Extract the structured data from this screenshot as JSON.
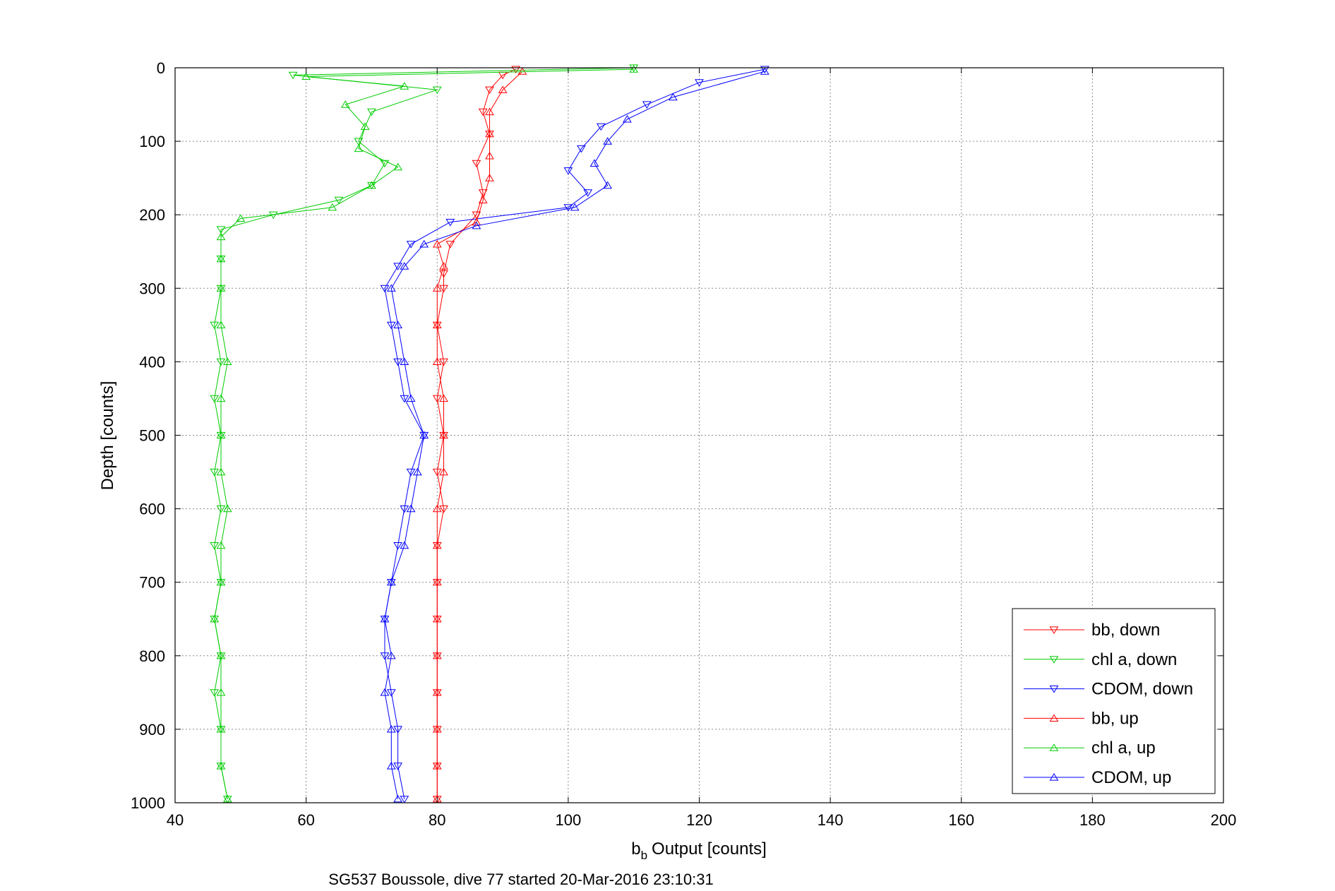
{
  "chart_data": {
    "type": "line",
    "xlabel": "Output [counts]",
    "xlabel_symbol": "b",
    "xlabel_subscript": "b",
    "ylabel": "Depth [counts]",
    "caption": "SG537 Boussole, dive 77 started 20-Mar-2016 23:10:31",
    "xlim": [
      40,
      200
    ],
    "ylim": [
      0,
      1000
    ],
    "y_reversed": true,
    "xticks": [
      "40",
      "60",
      "80",
      "100",
      "120",
      "140",
      "160",
      "180",
      "200"
    ],
    "yticks": [
      "0",
      "100",
      "200",
      "300",
      "400",
      "500",
      "600",
      "700",
      "800",
      "900",
      "1000"
    ],
    "grid": true,
    "legend_position": "bottom-right",
    "series": [
      {
        "name": "bb, down",
        "color": "#ff0000",
        "marker": "triangle-down",
        "points": [
          [
            92,
            2
          ],
          [
            90,
            10
          ],
          [
            88,
            30
          ],
          [
            87,
            60
          ],
          [
            88,
            90
          ],
          [
            86,
            130
          ],
          [
            87,
            170
          ],
          [
            86,
            200
          ],
          [
            82,
            240
          ],
          [
            81,
            280
          ],
          [
            81,
            300
          ],
          [
            80,
            350
          ],
          [
            81,
            400
          ],
          [
            80,
            450
          ],
          [
            81,
            500
          ],
          [
            80,
            550
          ],
          [
            81,
            600
          ],
          [
            80,
            650
          ],
          [
            80,
            700
          ],
          [
            80,
            750
          ],
          [
            80,
            800
          ],
          [
            80,
            850
          ],
          [
            80,
            900
          ],
          [
            80,
            950
          ],
          [
            80,
            995
          ]
        ]
      },
      {
        "name": "chl a, down",
        "color": "#00cc00",
        "marker": "triangle-down",
        "points": [
          [
            110,
            0
          ],
          [
            58,
            10
          ],
          [
            80,
            30
          ],
          [
            70,
            60
          ],
          [
            68,
            100
          ],
          [
            72,
            130
          ],
          [
            70,
            160
          ],
          [
            65,
            180
          ],
          [
            55,
            200
          ],
          [
            47,
            220
          ],
          [
            47,
            260
          ],
          [
            47,
            300
          ],
          [
            46,
            350
          ],
          [
            47,
            400
          ],
          [
            46,
            450
          ],
          [
            47,
            500
          ],
          [
            46,
            550
          ],
          [
            47,
            600
          ],
          [
            46,
            650
          ],
          [
            47,
            700
          ],
          [
            46,
            750
          ],
          [
            47,
            800
          ],
          [
            46,
            850
          ],
          [
            47,
            900
          ],
          [
            47,
            950
          ],
          [
            48,
            995
          ]
        ]
      },
      {
        "name": "CDOM, down",
        "color": "#0000ff",
        "marker": "triangle-down",
        "points": [
          [
            130,
            2
          ],
          [
            120,
            20
          ],
          [
            112,
            50
          ],
          [
            105,
            80
          ],
          [
            102,
            110
          ],
          [
            100,
            140
          ],
          [
            103,
            170
          ],
          [
            100,
            190
          ],
          [
            82,
            210
          ],
          [
            76,
            240
          ],
          [
            74,
            270
          ],
          [
            72,
            300
          ],
          [
            73,
            350
          ],
          [
            74,
            400
          ],
          [
            75,
            450
          ],
          [
            78,
            500
          ],
          [
            76,
            550
          ],
          [
            75,
            600
          ],
          [
            74,
            650
          ],
          [
            73,
            700
          ],
          [
            72,
            750
          ],
          [
            72,
            800
          ],
          [
            73,
            850
          ],
          [
            74,
            900
          ],
          [
            74,
            950
          ],
          [
            75,
            995
          ]
        ]
      },
      {
        "name": "bb, up",
        "color": "#ff0000",
        "marker": "triangle-up",
        "points": [
          [
            80,
            995
          ],
          [
            80,
            950
          ],
          [
            80,
            900
          ],
          [
            80,
            850
          ],
          [
            80,
            800
          ],
          [
            80,
            750
          ],
          [
            80,
            700
          ],
          [
            80,
            650
          ],
          [
            80,
            600
          ],
          [
            81,
            550
          ],
          [
            81,
            500
          ],
          [
            81,
            450
          ],
          [
            80,
            400
          ],
          [
            80,
            350
          ],
          [
            80,
            300
          ],
          [
            81,
            270
          ],
          [
            80,
            240
          ],
          [
            86,
            210
          ],
          [
            87,
            180
          ],
          [
            88,
            150
          ],
          [
            88,
            120
          ],
          [
            88,
            90
          ],
          [
            88,
            60
          ],
          [
            90,
            30
          ],
          [
            93,
            5
          ]
        ]
      },
      {
        "name": "chl a, up",
        "color": "#00cc00",
        "marker": "triangle-up",
        "points": [
          [
            48,
            995
          ],
          [
            47,
            950
          ],
          [
            47,
            900
          ],
          [
            47,
            850
          ],
          [
            47,
            800
          ],
          [
            46,
            750
          ],
          [
            47,
            700
          ],
          [
            47,
            650
          ],
          [
            48,
            600
          ],
          [
            47,
            550
          ],
          [
            47,
            500
          ],
          [
            47,
            450
          ],
          [
            48,
            400
          ],
          [
            47,
            350
          ],
          [
            47,
            300
          ],
          [
            47,
            260
          ],
          [
            47,
            230
          ],
          [
            50,
            205
          ],
          [
            64,
            190
          ],
          [
            70,
            160
          ],
          [
            74,
            135
          ],
          [
            68,
            110
          ],
          [
            69,
            80
          ],
          [
            66,
            50
          ],
          [
            75,
            25
          ],
          [
            60,
            12
          ],
          [
            110,
            2
          ]
        ]
      },
      {
        "name": "CDOM, up",
        "color": "#0000ff",
        "marker": "triangle-up",
        "points": [
          [
            74,
            995
          ],
          [
            73,
            950
          ],
          [
            73,
            900
          ],
          [
            72,
            850
          ],
          [
            73,
            800
          ],
          [
            72,
            750
          ],
          [
            73,
            700
          ],
          [
            75,
            650
          ],
          [
            76,
            600
          ],
          [
            77,
            550
          ],
          [
            78,
            500
          ],
          [
            76,
            450
          ],
          [
            75,
            400
          ],
          [
            74,
            350
          ],
          [
            73,
            300
          ],
          [
            75,
            270
          ],
          [
            78,
            240
          ],
          [
            86,
            215
          ],
          [
            101,
            190
          ],
          [
            106,
            160
          ],
          [
            104,
            130
          ],
          [
            106,
            100
          ],
          [
            109,
            70
          ],
          [
            116,
            40
          ],
          [
            130,
            5
          ]
        ]
      }
    ]
  }
}
